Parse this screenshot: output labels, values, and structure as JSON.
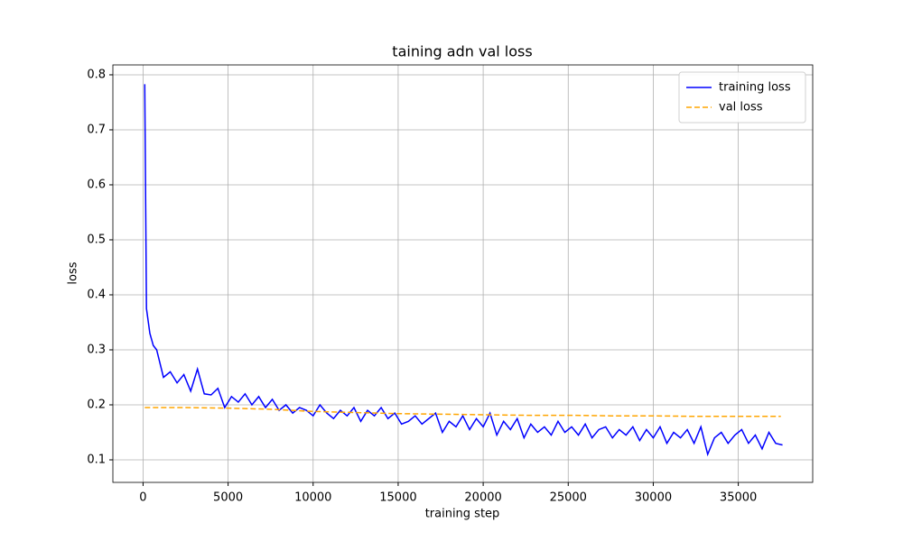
{
  "chart_data": {
    "type": "line",
    "title": "taining adn val loss",
    "xlabel": "training step",
    "ylabel": "loss",
    "xlim": [
      -1775,
      39375
    ],
    "ylim": [
      0.059,
      0.818
    ],
    "xticks": [
      0,
      5000,
      10000,
      15000,
      20000,
      25000,
      30000,
      35000
    ],
    "yticks": [
      0.1,
      0.2,
      0.3,
      0.4,
      0.5,
      0.6,
      0.7,
      0.8
    ],
    "grid": true,
    "legend": "upper right",
    "series": [
      {
        "name": "training loss",
        "color": "#0000ff",
        "linestyle": "solid",
        "x": [
          100,
          200,
          400,
          600,
          800,
          1200,
          1600,
          2000,
          2400,
          2800,
          3200,
          3600,
          4000,
          4400,
          4800,
          5200,
          5600,
          6000,
          6400,
          6800,
          7200,
          7600,
          8000,
          8400,
          8800,
          9200,
          9600,
          10000,
          10400,
          10800,
          11200,
          11600,
          12000,
          12400,
          12800,
          13200,
          13600,
          14000,
          14400,
          14800,
          15200,
          15600,
          16000,
          16400,
          16800,
          17200,
          17600,
          18000,
          18400,
          18800,
          19200,
          19600,
          20000,
          20400,
          20800,
          21200,
          21600,
          22000,
          22400,
          22800,
          23200,
          23600,
          24000,
          24400,
          24800,
          25200,
          25600,
          26000,
          26400,
          26800,
          27200,
          27600,
          28000,
          28400,
          28800,
          29200,
          29600,
          30000,
          30400,
          30800,
          31200,
          31600,
          32000,
          32400,
          32800,
          33200,
          33600,
          34000,
          34400,
          34800,
          35200,
          35600,
          36000,
          36400,
          36800,
          37200,
          37600
        ],
        "values": [
          0.783,
          0.375,
          0.33,
          0.308,
          0.3,
          0.25,
          0.26,
          0.24,
          0.255,
          0.225,
          0.265,
          0.22,
          0.218,
          0.23,
          0.195,
          0.215,
          0.205,
          0.22,
          0.2,
          0.215,
          0.195,
          0.21,
          0.19,
          0.2,
          0.185,
          0.195,
          0.19,
          0.18,
          0.2,
          0.185,
          0.175,
          0.19,
          0.18,
          0.195,
          0.17,
          0.19,
          0.18,
          0.195,
          0.175,
          0.185,
          0.165,
          0.17,
          0.18,
          0.165,
          0.175,
          0.185,
          0.15,
          0.17,
          0.16,
          0.18,
          0.155,
          0.175,
          0.16,
          0.185,
          0.145,
          0.17,
          0.155,
          0.175,
          0.14,
          0.165,
          0.15,
          0.16,
          0.145,
          0.17,
          0.15,
          0.16,
          0.145,
          0.165,
          0.14,
          0.155,
          0.16,
          0.14,
          0.155,
          0.145,
          0.16,
          0.135,
          0.155,
          0.14,
          0.16,
          0.13,
          0.15,
          0.14,
          0.155,
          0.13,
          0.16,
          0.11,
          0.14,
          0.15,
          0.13,
          0.145,
          0.155,
          0.13,
          0.145,
          0.12,
          0.15,
          0.13,
          0.127
        ]
      },
      {
        "name": "val loss",
        "color": "orange",
        "linestyle": "dashed",
        "x": [
          100,
          2500,
          5000,
          7500,
          10000,
          12500,
          15000,
          17500,
          20000,
          22500,
          25000,
          27500,
          30000,
          32500,
          35000,
          37500
        ],
        "values": [
          0.195,
          0.195,
          0.194,
          0.192,
          0.188,
          0.186,
          0.184,
          0.183,
          0.182,
          0.181,
          0.181,
          0.18,
          0.18,
          0.179,
          0.179,
          0.179
        ]
      }
    ]
  }
}
